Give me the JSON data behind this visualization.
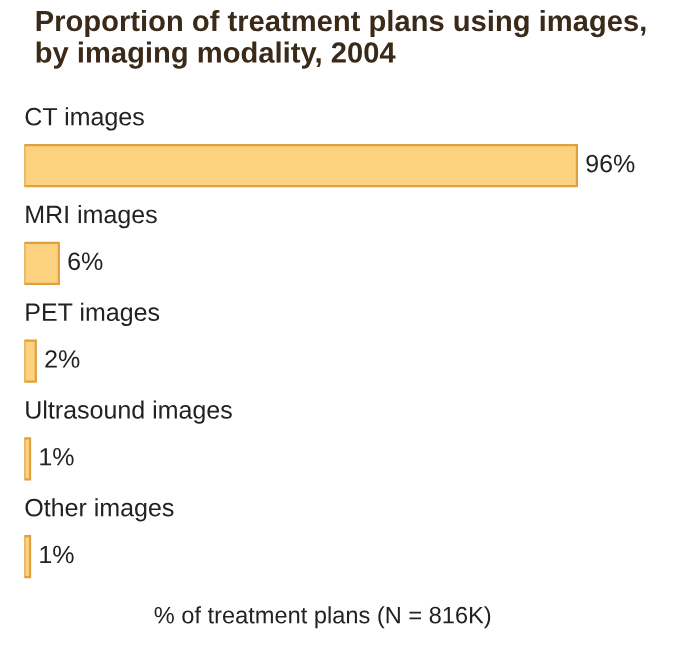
{
  "chart_data": {
    "type": "bar",
    "orientation": "horizontal",
    "title": "Proportion of treatment plans using images,\nby imaging modality, 2004",
    "xlabel": "% of treatment plans (N = 816K)",
    "categories": [
      "CT images",
      "MRI images",
      "PET images",
      "Ultrasound images",
      "Other images"
    ],
    "values": [
      96,
      6,
      2,
      1,
      1
    ],
    "value_labels": [
      "96%",
      "6%",
      "2%",
      "1%",
      "1%"
    ],
    "color": "#fdd27f"
  }
}
